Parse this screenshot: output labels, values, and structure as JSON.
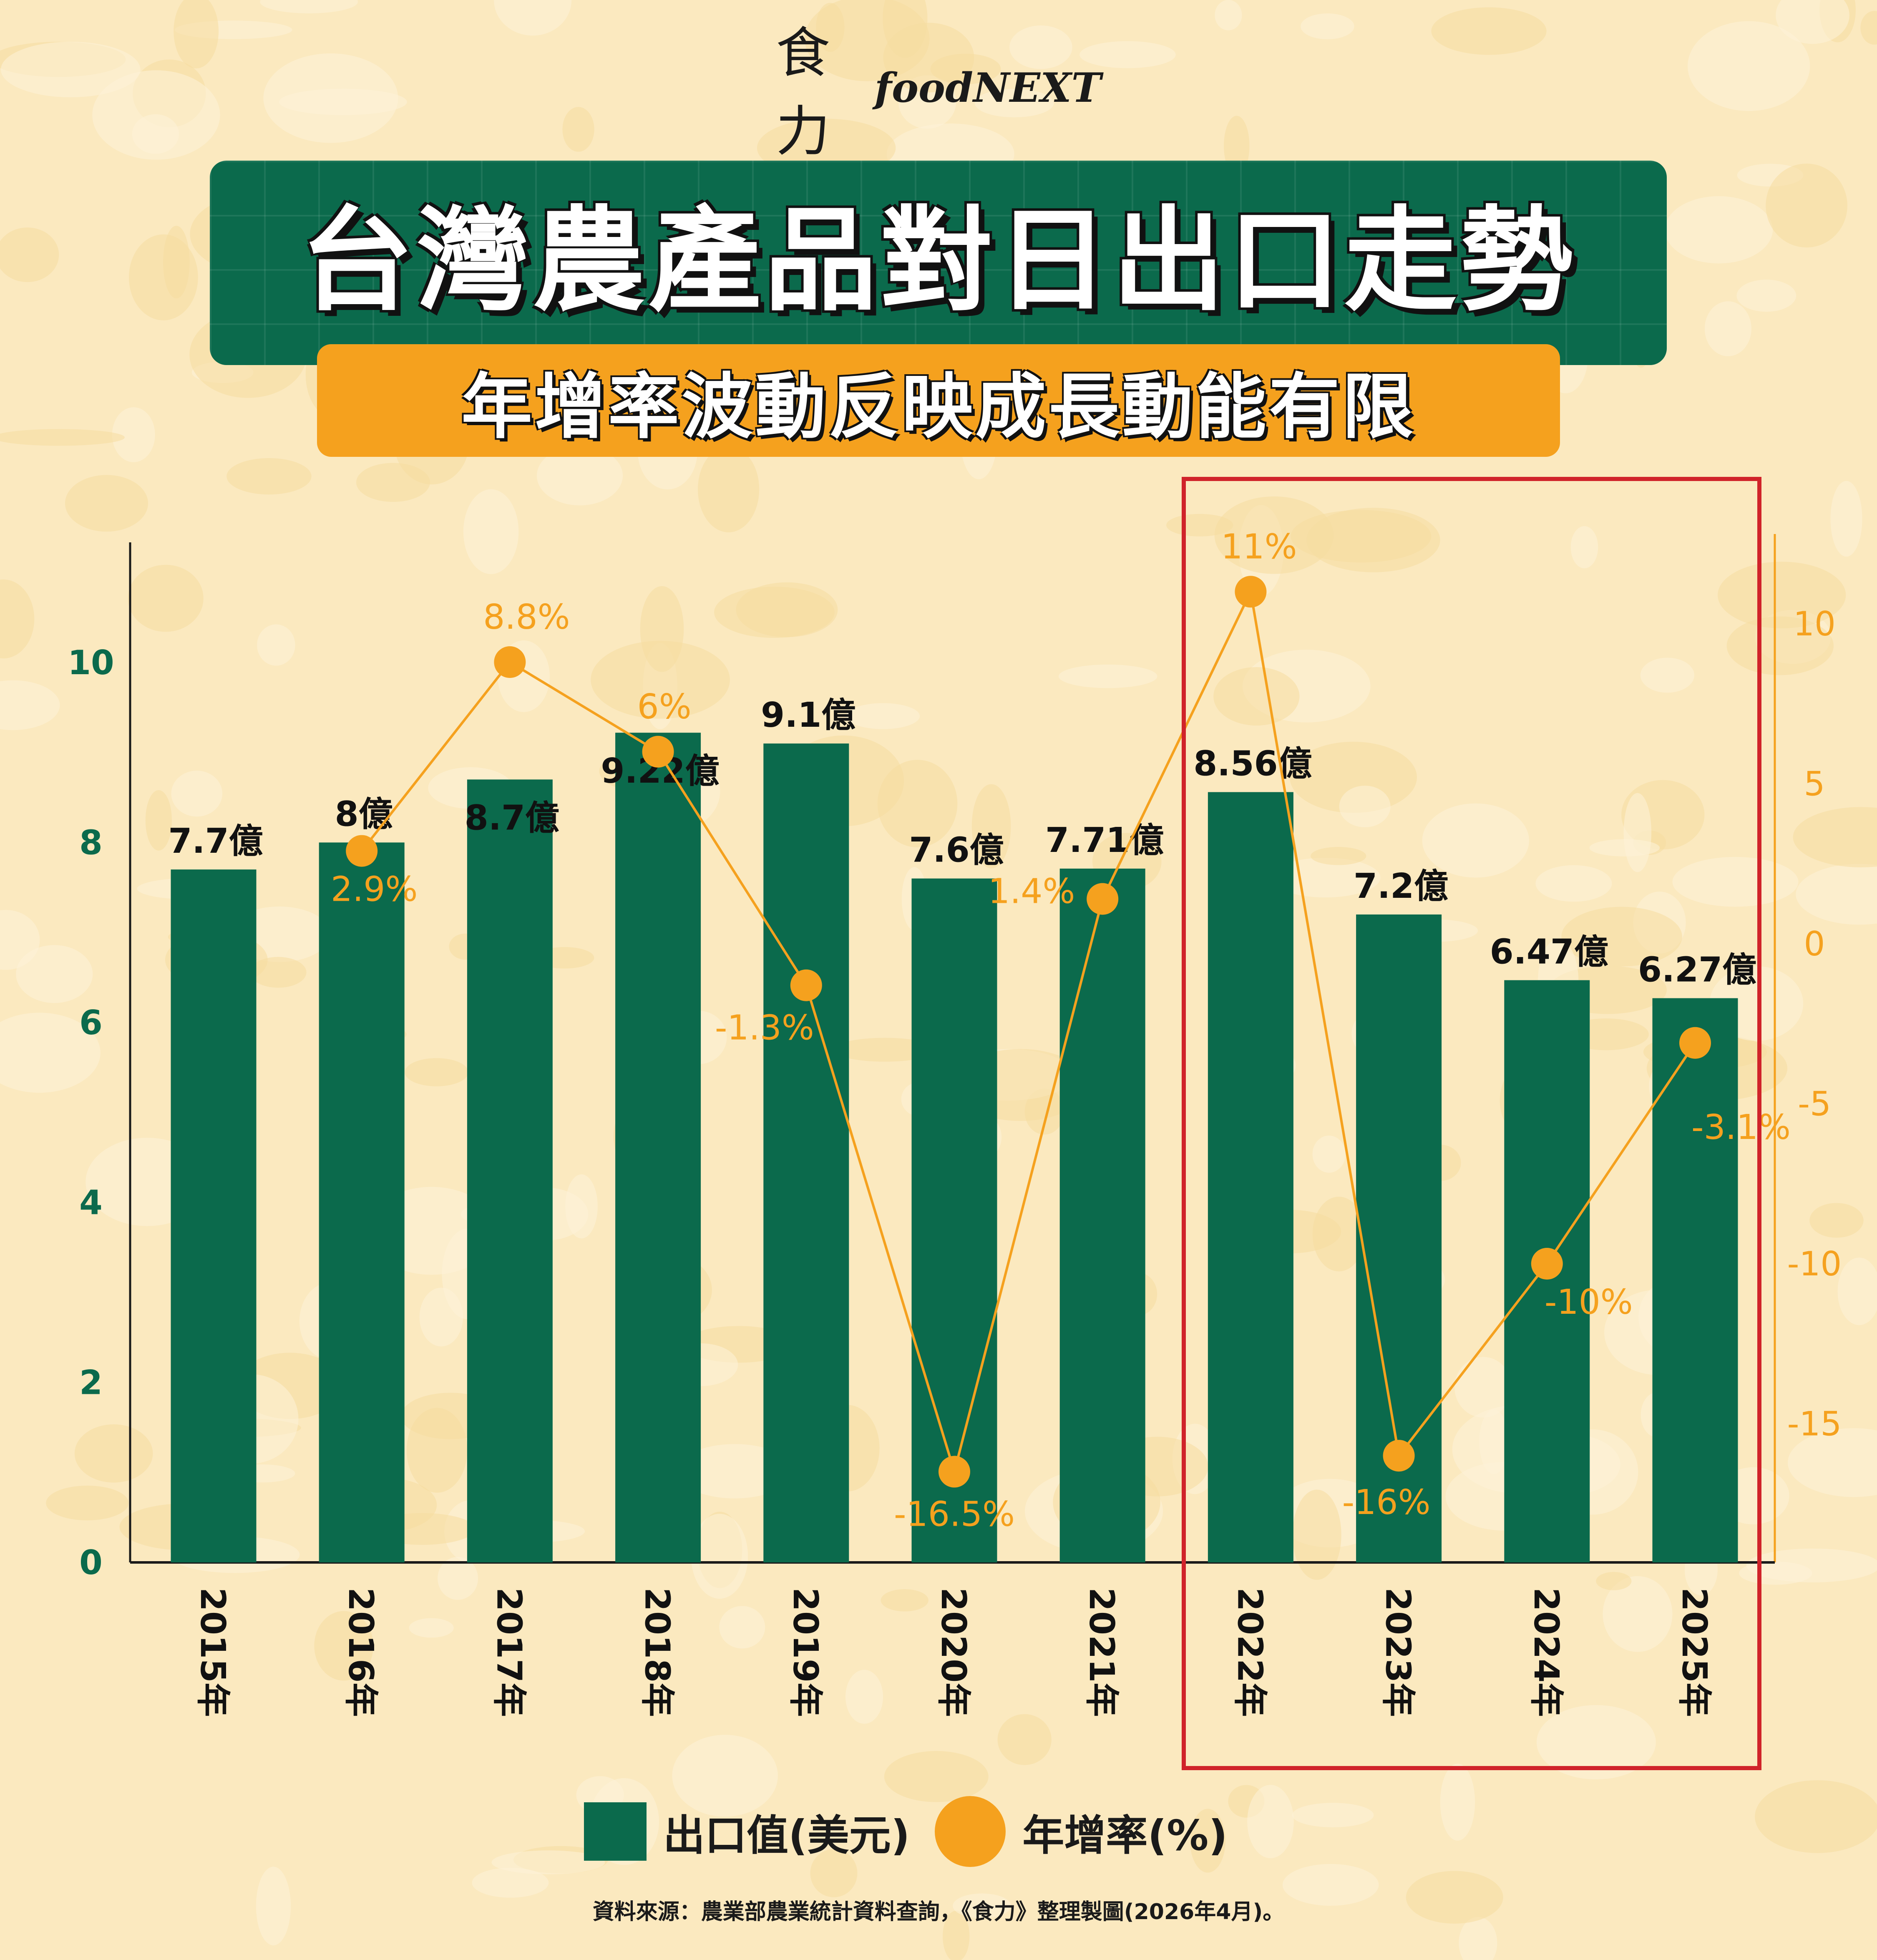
{
  "brand": {
    "cn": "食力",
    "en": "foodNEXT"
  },
  "title": "台灣農產品對日出口走勢",
  "subtitle": "年增率波動反映成長動能有限",
  "legend": {
    "bar_label": "出口值(美元)",
    "line_label": "年增率(%)"
  },
  "source": "資料來源：農業部農業統計資料查詢，《食力》整理製圖(2026年4月)。",
  "colors": {
    "bar": "#0b6a4c",
    "line": "#f5a11e",
    "highlight": "#d0232a",
    "left_axis_text": "#0b6a4c",
    "right_axis_text": "#f5a11e"
  },
  "chart_data": {
    "type": "bar",
    "categories": [
      "2015年",
      "2016年",
      "2017年",
      "2018年",
      "2019年",
      "2020年",
      "2021年",
      "2022年",
      "2023年",
      "2024年",
      "2025年"
    ],
    "series": [
      {
        "name": "出口值(美元)",
        "type": "bar",
        "axis": "left",
        "values": [
          7.7,
          8.0,
          8.7,
          9.22,
          9.1,
          7.6,
          7.71,
          8.56,
          7.2,
          6.47,
          6.27
        ],
        "labels": [
          "7.7億",
          "8億",
          "8.7億",
          "9.22億",
          "9.1億",
          "7.6億",
          "7.71億",
          "8.56億",
          "7.2億",
          "6.47億",
          "6.27億"
        ]
      },
      {
        "name": "年增率(%)",
        "type": "line",
        "axis": "right",
        "values": [
          null,
          2.9,
          8.8,
          6.0,
          -1.3,
          -16.5,
          1.4,
          11.0,
          -16.0,
          -10.0,
          -3.1
        ],
        "labels": [
          "",
          "2.9%",
          "8.8%",
          "6%",
          "-1.3%",
          "-16.5%",
          "1.4%",
          "11%",
          "-16%",
          "-10%",
          "-3.1%"
        ]
      }
    ],
    "left_axis": {
      "ticks": [
        0,
        2,
        4,
        6,
        8,
        10
      ],
      "ylim": [
        0,
        10
      ]
    },
    "right_axis": {
      "ticks": [
        -15,
        -10,
        -5,
        0,
        5,
        10
      ],
      "ylim": [
        -15,
        10
      ]
    },
    "highlight_range": [
      "2022年",
      "2025年"
    ]
  }
}
